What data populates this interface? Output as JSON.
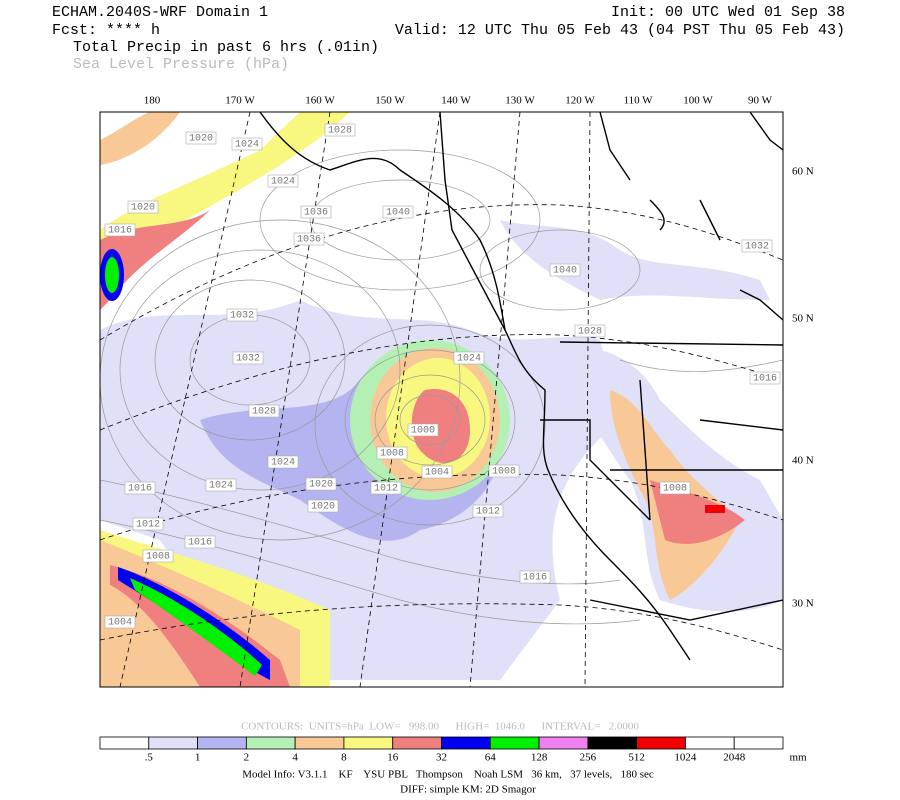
{
  "header": {
    "model": "ECHAM.2040S-WRF Domain 1",
    "fcst": "Fcst: **** h",
    "init": "Init: 00 UTC Wed 01 Sep 38",
    "valid": "Valid: 12 UTC Thu 05 Feb 43 (04 PST Thu 05 Feb 43)",
    "field1": "Total Precip in past 6 hrs (.01in)",
    "field2": "Sea Level Pressure (hPa)"
  },
  "map": {
    "lon_labels": [
      "180",
      "170 W",
      "160 W",
      "150 W",
      "140 W",
      "130 W",
      "120 W",
      "110 W",
      "100 W",
      "90 W"
    ],
    "lat_labels": [
      "60 N",
      "50 N",
      "40 N",
      "30 N"
    ],
    "isobar_labels": [
      "1020",
      "1024",
      "1028",
      "1024",
      "1020",
      "1016",
      "1036",
      "1036",
      "1040",
      "1040",
      "1032",
      "1032",
      "1032",
      "1028",
      "1024",
      "1024",
      "1024",
      "1020",
      "1020",
      "1008",
      "1012",
      "1000",
      "1004",
      "1008",
      "1012",
      "1016",
      "1016",
      "1012",
      "1008",
      "1004",
      "1016",
      "1028",
      "1016",
      "1008"
    ]
  },
  "footer": {
    "contours": "CONTOURS:  UNITS=hPa  LOW=   998.00      HIGH=  1046.0      INTERVAL=   2.0000",
    "model_info": "Model Info: V3.1.1    KF    YSU PBL   Thompson    Noah LSM   36 km,   37 levels,   180 sec",
    "diff": "DIFF: simple KM: 2D Smagor"
  },
  "colorbar": {
    "labels": [
      ".5",
      "1",
      "2",
      "4",
      "8",
      "16",
      "32",
      "64",
      "128",
      "256",
      "512",
      "1024",
      "2048"
    ],
    "unit": "mm"
  }
}
